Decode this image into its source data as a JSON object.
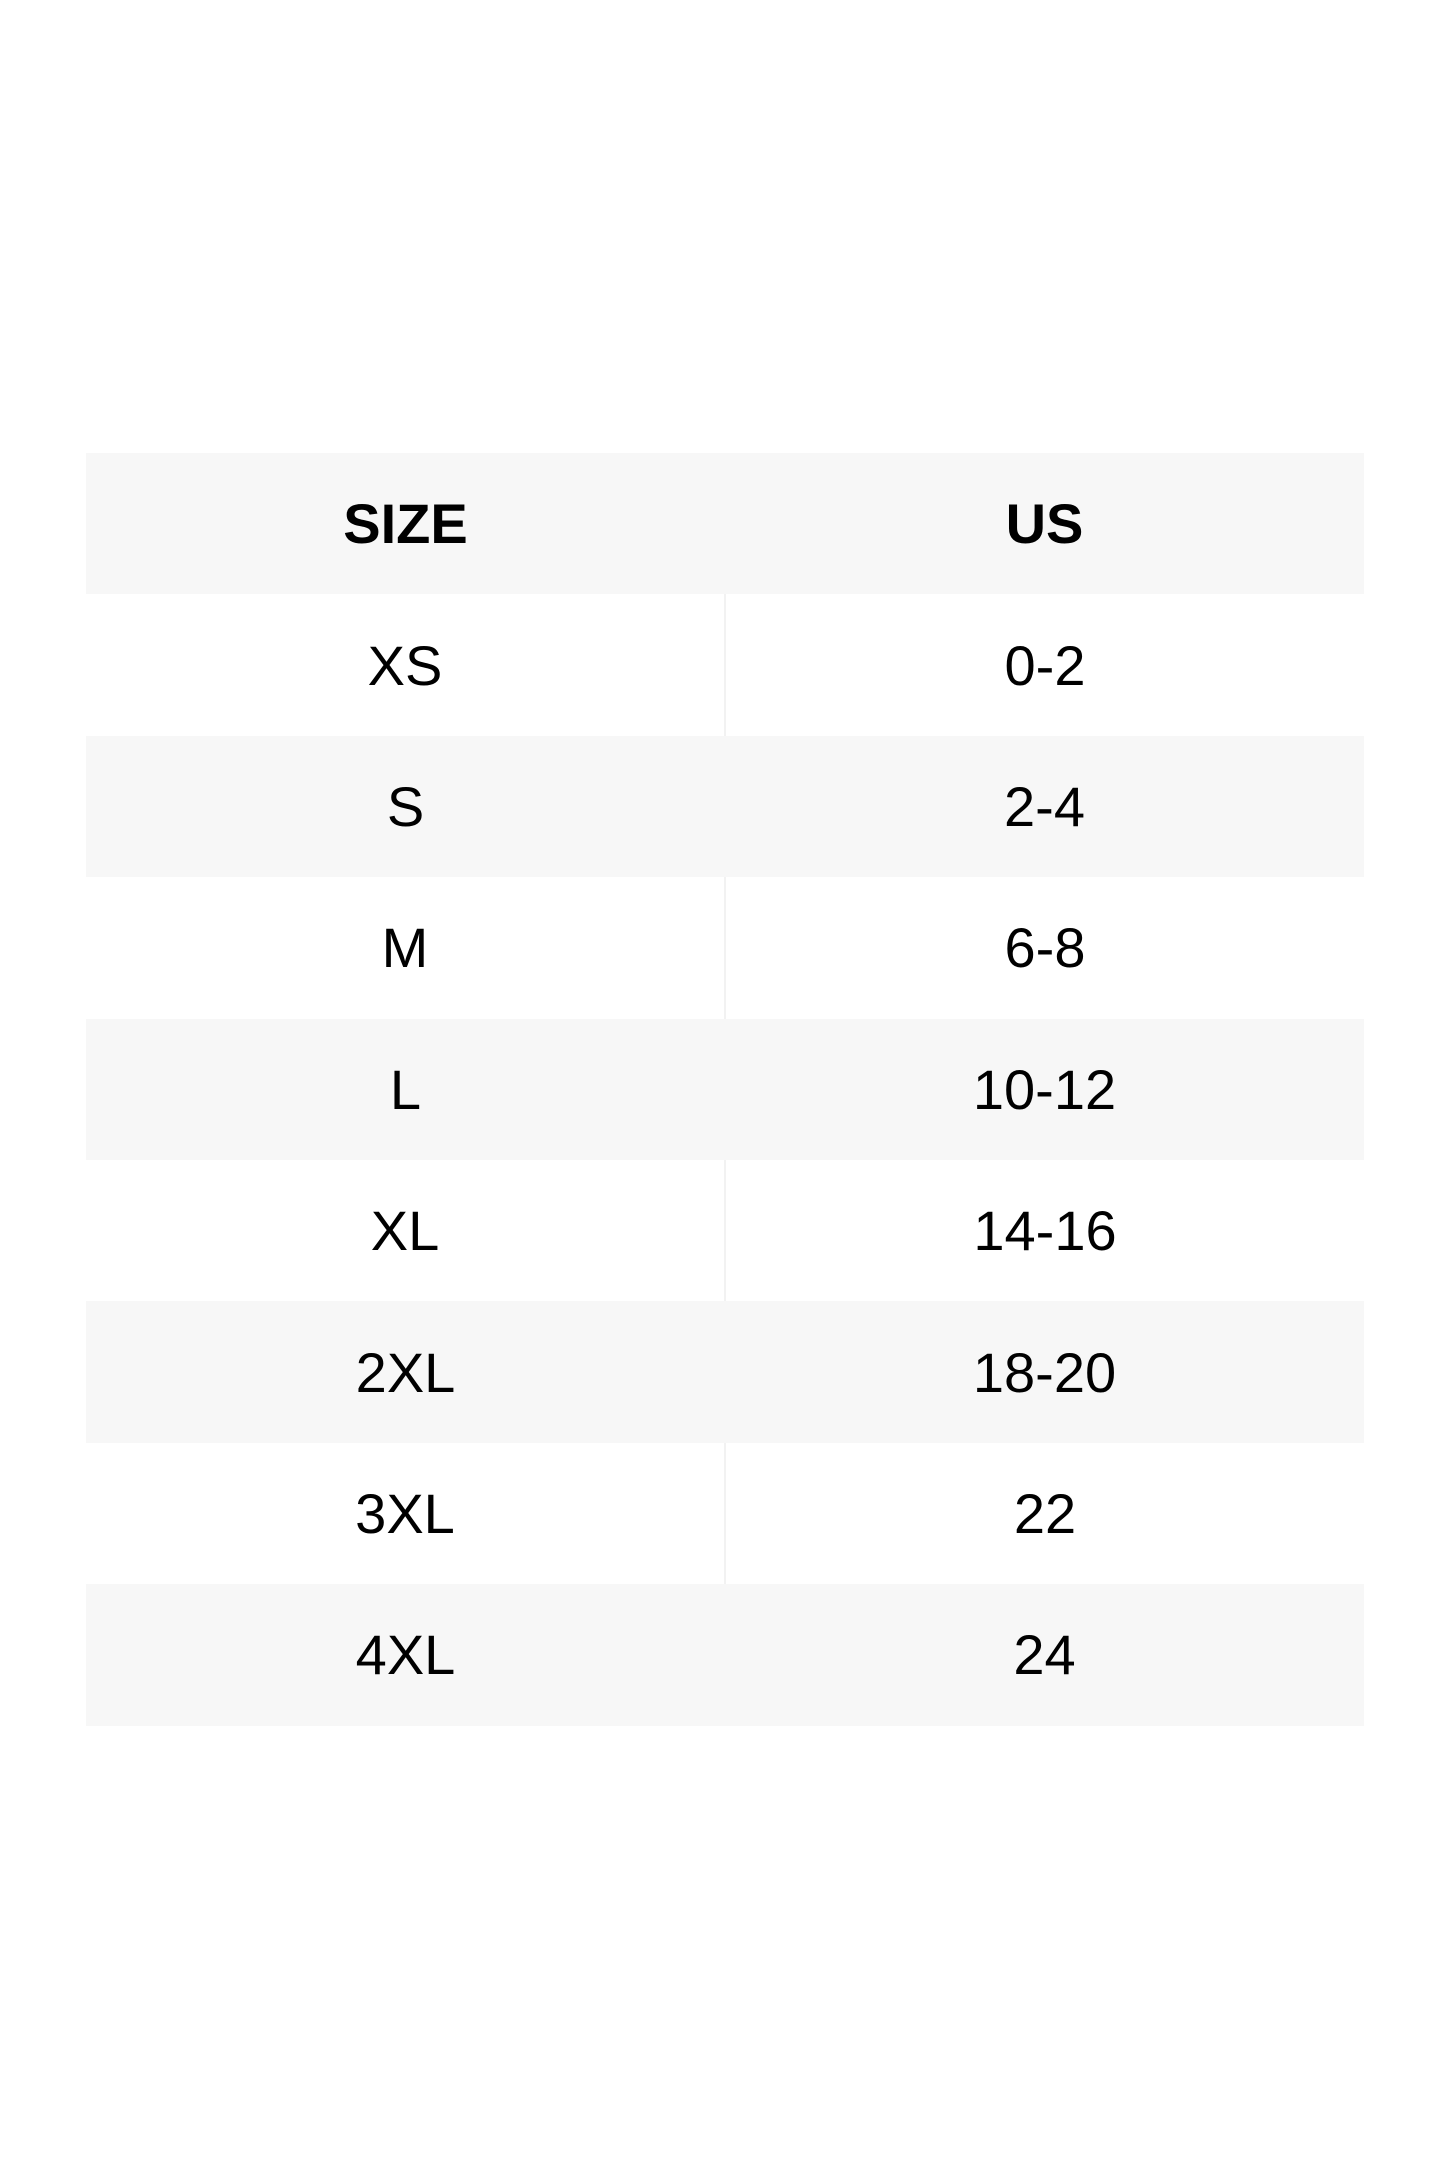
{
  "table": {
    "headers": [
      "SIZE",
      "US"
    ],
    "rows": [
      [
        "XS",
        "0-2"
      ],
      [
        "S",
        "2-4"
      ],
      [
        "M",
        "6-8"
      ],
      [
        "L",
        "10-12"
      ],
      [
        "XL",
        "14-16"
      ],
      [
        "2XL",
        "18-20"
      ],
      [
        "3XL",
        "22"
      ],
      [
        "4XL",
        "24"
      ]
    ]
  },
  "colors": {
    "stripe": "#f7f7f7",
    "background": "#ffffff",
    "text": "#000000"
  }
}
